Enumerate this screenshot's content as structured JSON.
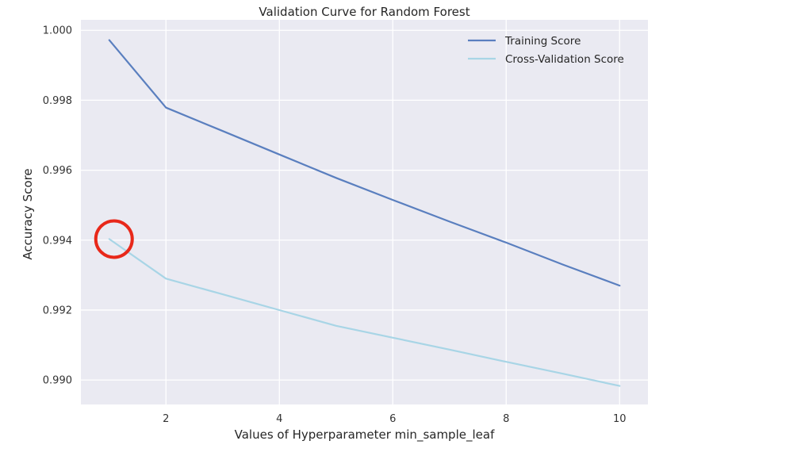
{
  "chart_data": {
    "type": "line",
    "title": "Validation Curve for Random Forest",
    "xlabel": "Values of Hyperparameter min_sample_leaf",
    "ylabel": "Accuracy Score",
    "xlim": [
      0.5,
      10.5
    ],
    "ylim": [
      0.9893,
      1.0003
    ],
    "xticks": [
      2,
      4,
      6,
      8,
      10
    ],
    "xtick_labels": [
      "2",
      "4",
      "6",
      "8",
      "10"
    ],
    "yticks": [
      0.99,
      0.992,
      0.994,
      0.996,
      0.998,
      1.0
    ],
    "ytick_labels": [
      "0.990",
      "0.992",
      "0.994",
      "0.996",
      "0.998",
      "1.000"
    ],
    "grid": true,
    "legend_position": "upper-right",
    "x": [
      1,
      2,
      3,
      4,
      5,
      6,
      7,
      8,
      9,
      10
    ],
    "series": [
      {
        "name": "Training Score",
        "color": "#5a7fbf",
        "values": [
          0.99972,
          0.99779,
          0.99712,
          0.99645,
          0.99578,
          0.99515,
          0.99453,
          0.99393,
          0.9933,
          0.9927
        ]
      },
      {
        "name": "Cross-Validation Score",
        "color": "#a8d5e6",
        "values": [
          0.99403,
          0.9929,
          0.99245,
          0.992,
          0.99155,
          0.99121,
          0.99087,
          0.99052,
          0.99018,
          0.98983
        ]
      }
    ],
    "annotations": [
      {
        "type": "circle",
        "x": 1,
        "y": 0.99403,
        "color": "#e8281a"
      }
    ]
  }
}
